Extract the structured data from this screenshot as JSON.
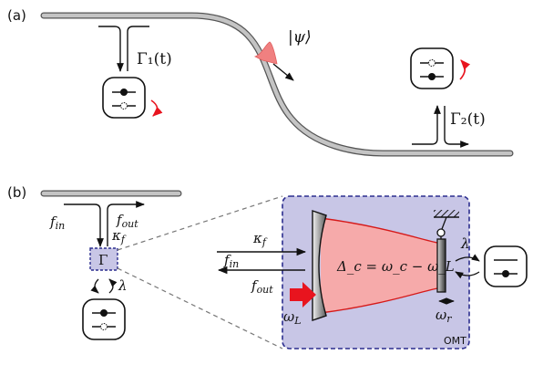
{
  "panel_a": {
    "label": "(a)",
    "gamma1": "Γ₁(t)",
    "gamma2": "Γ₂(t)",
    "psi": "|ψ⟩"
  },
  "panel_b": {
    "label": "(b)",
    "f_in_left": "f",
    "f_in_left_sub": "in",
    "f_out_left": "f",
    "f_out_left_sub": "out",
    "kappa_left": "κ",
    "kappa_left_sub": "f",
    "gamma_box": "Γ",
    "lambda_left": "λ",
    "kappa_right": "κ",
    "kappa_right_sub": "f",
    "f_in_right": "f",
    "f_in_right_sub": "in",
    "f_out_right": "f",
    "f_out_right_sub": "out",
    "omega_l": "ω",
    "omega_l_sub": "L",
    "delta_eq": "Δ_c = ω_c − ω_L",
    "lambda_right": "λ",
    "omega_r": "ω",
    "omega_r_sub": "r",
    "omt": "OMT"
  },
  "colors": {
    "waveguide": "#b8b8b8",
    "pulse": "#f08080",
    "red_arrow": "#e8141e",
    "box_fill": "#c8c6e6",
    "box_border": "#2b2d8e",
    "cavity_fill": "#f6aaaa",
    "cavity_line": "#d61a1a"
  }
}
